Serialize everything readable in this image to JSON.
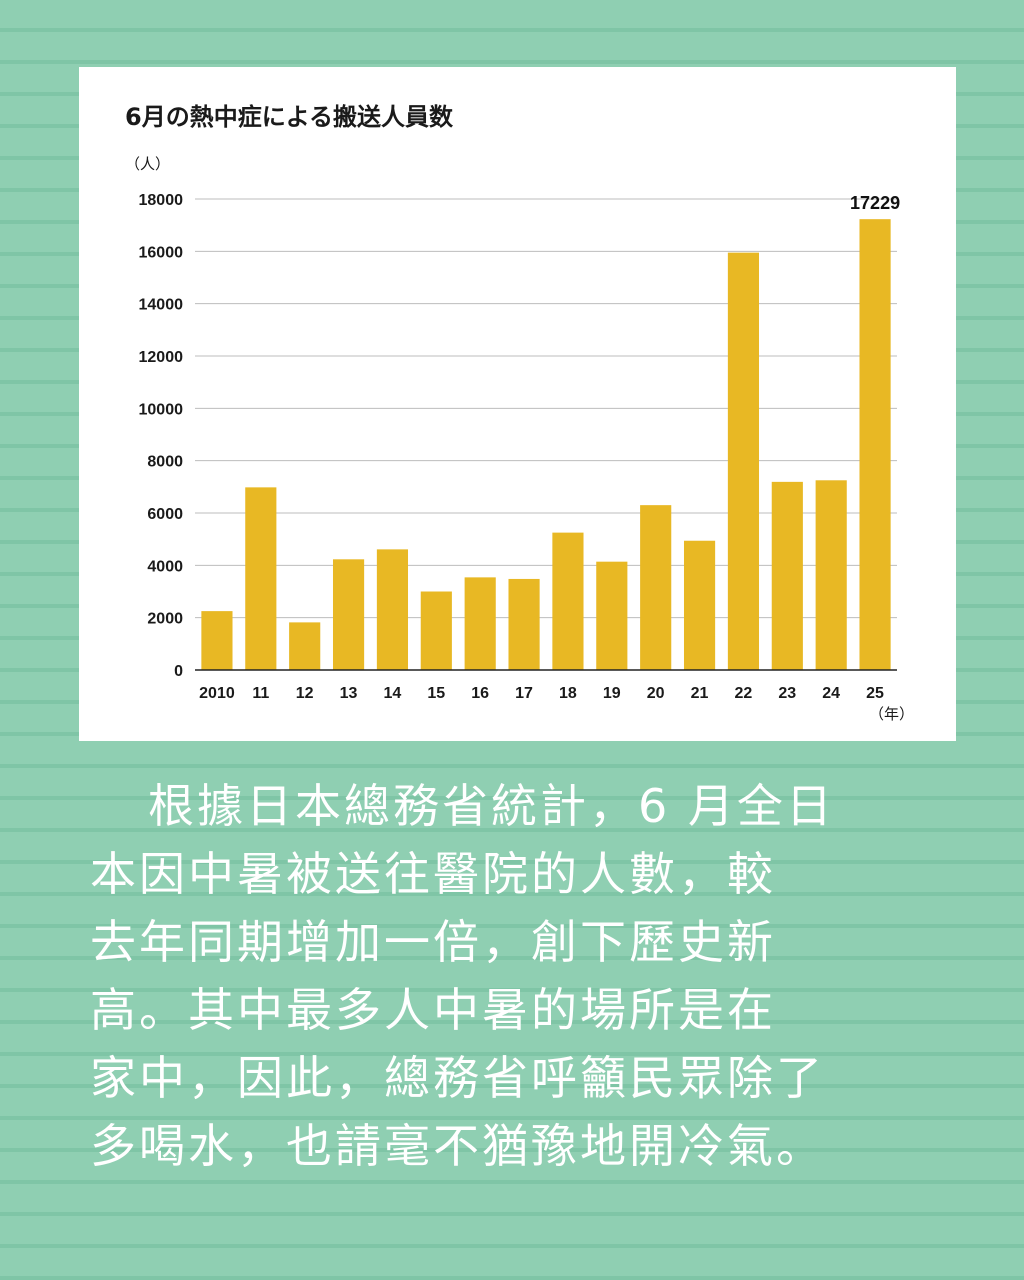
{
  "chart_data": {
    "type": "bar",
    "title": "6月の熱中症による搬送人員数",
    "ylabel": "（人）",
    "xlabel": "（年）",
    "categories": [
      "2010",
      "11",
      "12",
      "13",
      "14",
      "15",
      "16",
      "17",
      "18",
      "19",
      "20",
      "21",
      "22",
      "23",
      "24",
      "25"
    ],
    "values": [
      2250,
      6980,
      1820,
      4230,
      4610,
      3000,
      3540,
      3480,
      5250,
      4140,
      6300,
      4940,
      15950,
      7190,
      7250,
      17229
    ],
    "ylim": [
      0,
      18000
    ],
    "yticks": [
      "0",
      "2000",
      "4000",
      "6000",
      "8000",
      "10000",
      "12000",
      "14000",
      "16000",
      "18000"
    ],
    "annotation": "17229",
    "bar_color": "#e8b824",
    "grid": true
  },
  "caption_lines": [
    "根據日本總務省統計，6 月全日",
    "本因中暑被送往醫院的人數，較",
    "去年同期增加一倍，創下歷史新",
    "高。其中最多人中暑的場所是在",
    "家中，因此，總務省呼籲民眾除了",
    "多喝水，也請毫不猶豫地開冷氣。"
  ],
  "colors": {
    "background": "#8fcfb2",
    "card": "#ffffff",
    "bar": "#e8b824",
    "text": "#1a1a1a",
    "caption_text": "#ffffff"
  }
}
